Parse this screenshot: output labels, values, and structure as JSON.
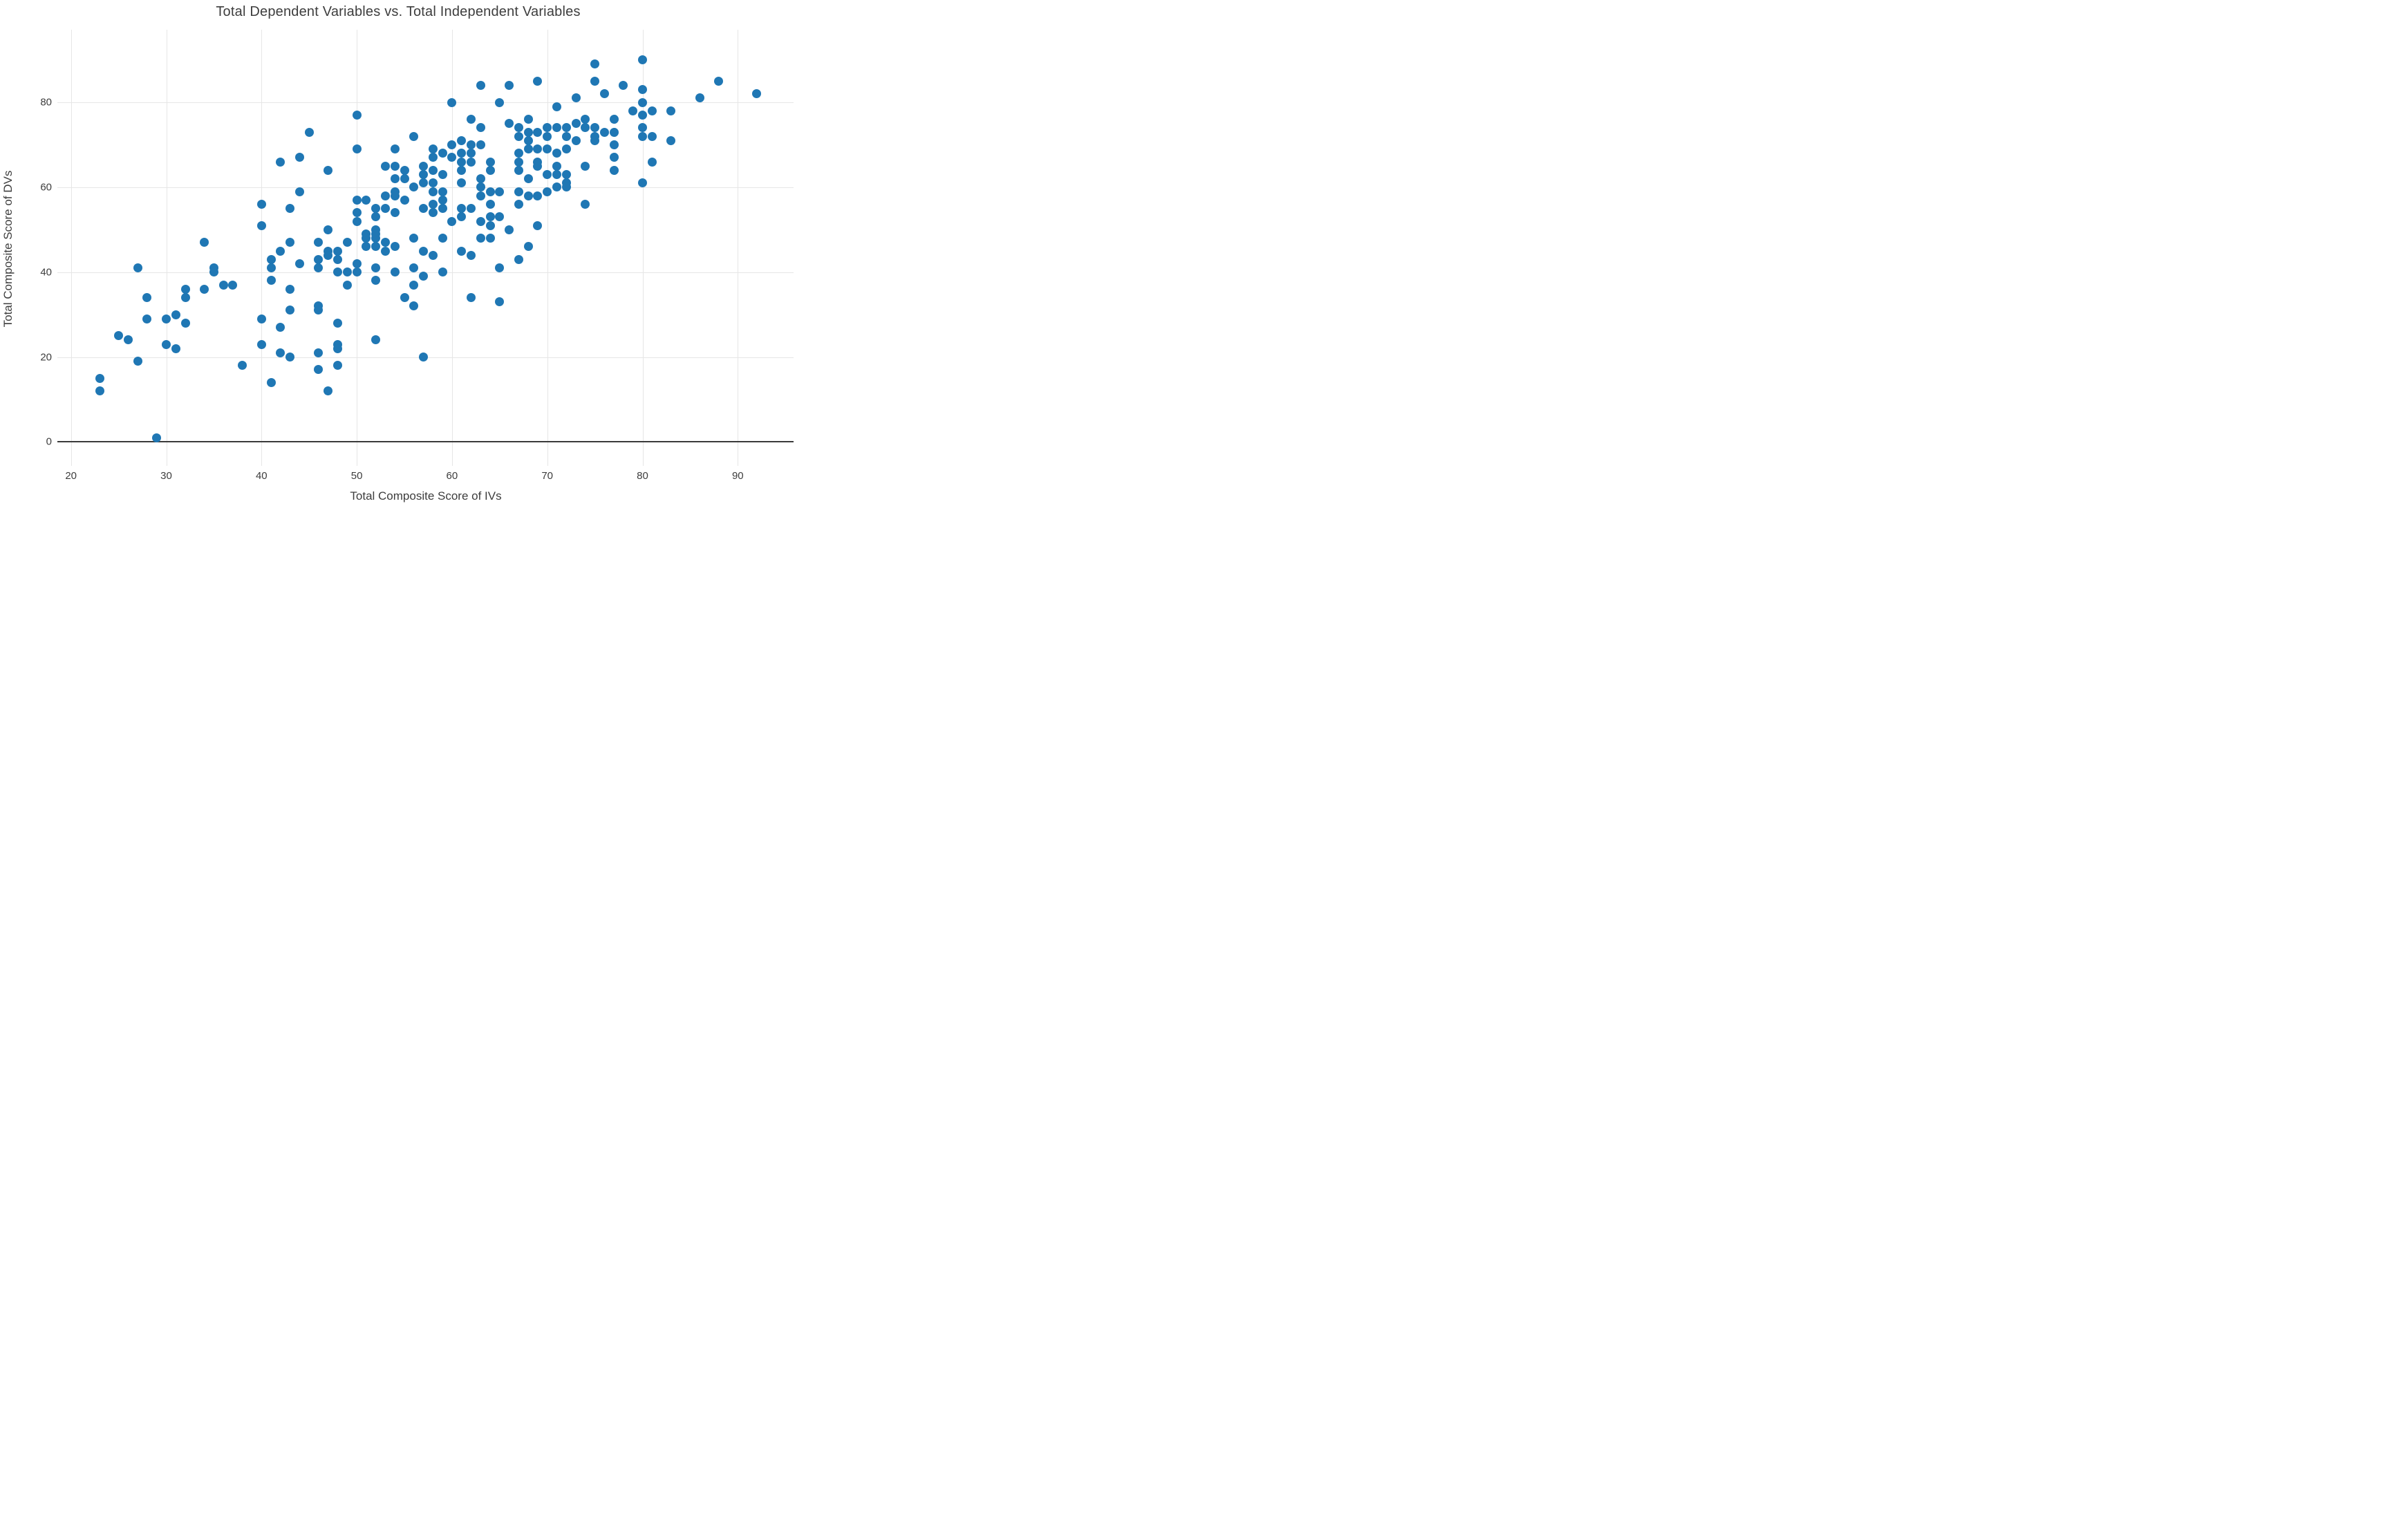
{
  "title": "Total Dependent Variables vs. Total Independent Variables",
  "chart_data": {
    "type": "scatter",
    "title": "Total Dependent Variables vs. Total Independent Variables",
    "xlabel": "Total Composite Score of IVs",
    "ylabel": "Total Composite Score of DVs",
    "xlim": [
      18.6,
      96.0
    ],
    "ylim": [
      -5.7,
      97.1
    ],
    "x_ticks": [
      20,
      30,
      40,
      50,
      60,
      70,
      80,
      90
    ],
    "y_ticks": [
      0,
      20,
      40,
      60,
      80
    ],
    "grid": true,
    "zeroline_y": 0,
    "legend_position": "none",
    "marker_color": "#1f77b4",
    "grid_color": "#e6e6e6",
    "zeroline_color": "#3a3a3a",
    "text_color": "#3d3d3d",
    "background_color": "#ffffff",
    "points": [
      [
        23,
        15
      ],
      [
        23,
        12
      ],
      [
        27,
        19
      ],
      [
        29,
        1
      ],
      [
        27,
        41
      ],
      [
        35,
        41
      ],
      [
        35,
        40
      ],
      [
        36,
        37
      ],
      [
        37,
        37
      ],
      [
        34,
        36
      ],
      [
        32,
        36
      ],
      [
        32,
        34
      ],
      [
        28,
        34
      ],
      [
        31,
        30
      ],
      [
        30,
        29
      ],
      [
        28,
        29
      ],
      [
        32,
        28
      ],
      [
        25,
        25
      ],
      [
        26,
        24
      ],
      [
        30,
        23
      ],
      [
        31,
        22
      ],
      [
        38,
        18
      ],
      [
        34,
        47
      ],
      [
        40,
        51
      ],
      [
        40,
        56
      ],
      [
        47,
        50
      ],
      [
        43,
        47
      ],
      [
        46,
        47
      ],
      [
        49,
        47
      ],
      [
        42,
        45
      ],
      [
        48,
        45
      ],
      [
        47,
        45
      ],
      [
        47,
        44
      ],
      [
        46,
        43
      ],
      [
        44,
        42
      ],
      [
        41,
        43
      ],
      [
        41,
        41
      ],
      [
        48,
        43
      ],
      [
        50,
        42
      ],
      [
        46,
        41
      ],
      [
        48,
        40
      ],
      [
        49,
        40
      ],
      [
        50,
        40
      ],
      [
        41,
        38
      ],
      [
        43,
        36
      ],
      [
        49,
        37
      ],
      [
        43,
        31
      ],
      [
        46,
        32
      ],
      [
        46,
        31
      ],
      [
        42,
        27
      ],
      [
        48,
        28
      ],
      [
        42,
        21
      ],
      [
        43,
        20
      ],
      [
        46,
        21
      ],
      [
        48,
        23
      ],
      [
        48,
        22
      ],
      [
        48,
        18
      ],
      [
        46,
        17
      ],
      [
        41,
        14
      ],
      [
        47,
        12
      ],
      [
        40,
        29
      ],
      [
        40,
        23
      ],
      [
        50,
        77
      ],
      [
        45,
        73
      ],
      [
        44,
        67
      ],
      [
        42,
        66
      ],
      [
        47,
        64
      ],
      [
        44,
        59
      ],
      [
        43,
        55
      ],
      [
        50,
        54
      ],
      [
        50,
        52
      ],
      [
        60,
        80
      ],
      [
        56,
        72
      ],
      [
        54,
        69
      ],
      [
        50,
        69
      ],
      [
        58,
        69
      ],
      [
        58,
        67
      ],
      [
        59,
        68
      ],
      [
        60,
        70
      ],
      [
        60,
        67
      ],
      [
        53,
        65
      ],
      [
        54,
        65
      ],
      [
        55,
        64
      ],
      [
        55,
        62
      ],
      [
        54,
        62
      ],
      [
        57,
        65
      ],
      [
        57,
        63
      ],
      [
        57,
        61
      ],
      [
        58,
        64
      ],
      [
        59,
        63
      ],
      [
        58,
        61
      ],
      [
        56,
        60
      ],
      [
        58,
        59
      ],
      [
        59,
        59
      ],
      [
        59,
        57
      ],
      [
        59,
        55
      ],
      [
        58,
        56
      ],
      [
        58,
        54
      ],
      [
        57,
        55
      ],
      [
        55,
        57
      ],
      [
        51,
        57
      ],
      [
        53,
        58
      ],
      [
        54,
        59
      ],
      [
        54,
        58
      ],
      [
        52,
        55
      ],
      [
        53,
        55
      ],
      [
        54,
        54
      ],
      [
        52,
        53
      ],
      [
        50,
        57
      ],
      [
        52,
        50
      ],
      [
        51,
        49
      ],
      [
        51,
        48
      ],
      [
        52,
        49
      ],
      [
        52,
        48
      ],
      [
        51,
        46
      ],
      [
        52,
        46
      ],
      [
        53,
        47
      ],
      [
        53,
        45
      ],
      [
        54,
        46
      ],
      [
        56,
        48
      ],
      [
        59,
        48
      ],
      [
        57,
        45
      ],
      [
        58,
        44
      ],
      [
        52,
        41
      ],
      [
        56,
        41
      ],
      [
        59,
        40
      ],
      [
        60,
        52
      ],
      [
        54,
        40
      ],
      [
        57,
        39
      ],
      [
        52,
        38
      ],
      [
        55,
        34
      ],
      [
        56,
        32
      ],
      [
        56,
        37
      ],
      [
        52,
        24
      ],
      [
        57,
        20
      ],
      [
        63,
        84
      ],
      [
        66,
        84
      ],
      [
        69,
        85
      ],
      [
        65,
        80
      ],
      [
        62,
        76
      ],
      [
        66,
        75
      ],
      [
        67,
        74
      ],
      [
        67,
        72
      ],
      [
        68,
        76
      ],
      [
        70,
        74
      ],
      [
        70,
        72
      ],
      [
        68,
        73
      ],
      [
        68,
        71
      ],
      [
        69,
        73
      ],
      [
        63,
        74
      ],
      [
        61,
        71
      ],
      [
        62,
        70
      ],
      [
        63,
        70
      ],
      [
        61,
        68
      ],
      [
        62,
        68
      ],
      [
        61,
        66
      ],
      [
        62,
        66
      ],
      [
        67,
        68
      ],
      [
        68,
        69
      ],
      [
        69,
        69
      ],
      [
        70,
        69
      ],
      [
        64,
        66
      ],
      [
        64,
        64
      ],
      [
        67,
        66
      ],
      [
        67,
        64
      ],
      [
        69,
        66
      ],
      [
        69,
        65
      ],
      [
        61,
        64
      ],
      [
        68,
        62
      ],
      [
        61,
        61
      ],
      [
        63,
        62
      ],
      [
        63,
        60
      ],
      [
        63,
        58
      ],
      [
        64,
        59
      ],
      [
        65,
        59
      ],
      [
        67,
        59
      ],
      [
        67,
        56
      ],
      [
        68,
        58
      ],
      [
        69,
        58
      ],
      [
        61,
        55
      ],
      [
        61,
        53
      ],
      [
        62,
        55
      ],
      [
        64,
        56
      ],
      [
        64,
        53
      ],
      [
        64,
        51
      ],
      [
        65,
        53
      ],
      [
        63,
        52
      ],
      [
        66,
        50
      ],
      [
        68,
        46
      ],
      [
        69,
        51
      ],
      [
        63,
        48
      ],
      [
        64,
        48
      ],
      [
        61,
        45
      ],
      [
        62,
        44
      ],
      [
        67,
        43
      ],
      [
        65,
        41
      ],
      [
        70,
        63
      ],
      [
        62,
        34
      ],
      [
        65,
        33
      ],
      [
        75,
        89
      ],
      [
        80,
        90
      ],
      [
        75,
        85
      ],
      [
        78,
        84
      ],
      [
        80,
        83
      ],
      [
        73,
        81
      ],
      [
        76,
        82
      ],
      [
        80,
        80
      ],
      [
        71,
        79
      ],
      [
        79,
        78
      ],
      [
        77,
        76
      ],
      [
        73,
        75
      ],
      [
        74,
        76
      ],
      [
        74,
        74
      ],
      [
        71,
        74
      ],
      [
        72,
        74
      ],
      [
        72,
        72
      ],
      [
        73,
        71
      ],
      [
        75,
        74
      ],
      [
        75,
        72
      ],
      [
        75,
        71
      ],
      [
        76,
        73
      ],
      [
        77,
        73
      ],
      [
        80,
        77
      ],
      [
        80,
        74
      ],
      [
        80,
        72
      ],
      [
        77,
        70
      ],
      [
        72,
        69
      ],
      [
        71,
        68
      ],
      [
        77,
        67
      ],
      [
        77,
        64
      ],
      [
        71,
        65
      ],
      [
        71,
        63
      ],
      [
        72,
        63
      ],
      [
        72,
        61
      ],
      [
        74,
        65
      ],
      [
        71,
        60
      ],
      [
        72,
        60
      ],
      [
        70,
        59
      ],
      [
        74,
        56
      ],
      [
        80,
        61
      ],
      [
        88,
        85
      ],
      [
        86,
        81
      ],
      [
        92,
        82
      ],
      [
        81,
        78
      ],
      [
        83,
        78
      ],
      [
        81,
        72
      ],
      [
        83,
        71
      ],
      [
        81,
        66
      ]
    ]
  }
}
